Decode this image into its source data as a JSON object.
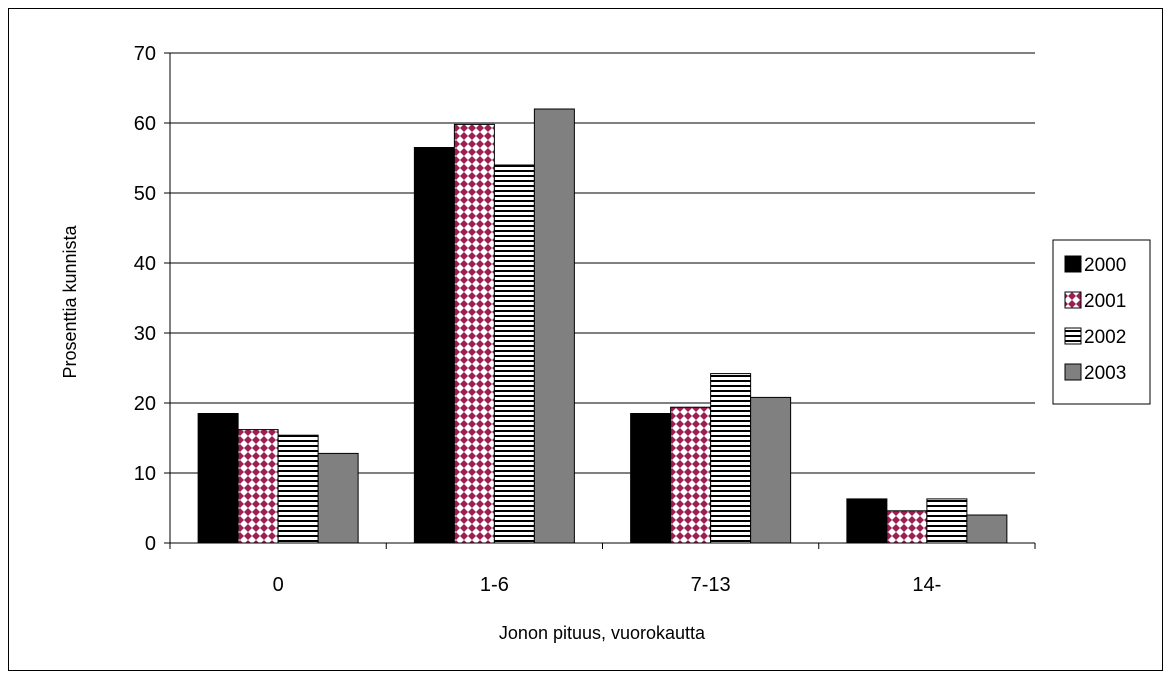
{
  "chart_data": {
    "type": "bar",
    "title": "",
    "xlabel": "Jonon pituus, vuorokautta",
    "ylabel": "Prosenttia kunnista",
    "categories": [
      "0",
      "1-6",
      "7-13",
      "14-"
    ],
    "series": [
      {
        "name": "2000",
        "values": [
          18.5,
          56.5,
          18.5,
          6.3
        ],
        "color": "#000000",
        "pattern": "solid"
      },
      {
        "name": "2001",
        "values": [
          16.2,
          59.8,
          19.4,
          4.6
        ],
        "color": "#9c1f54",
        "pattern": "diamond-check"
      },
      {
        "name": "2002",
        "values": [
          15.4,
          54.0,
          24.2,
          6.3
        ],
        "color": "#ffffff",
        "pattern": "horizontal-lines"
      },
      {
        "name": "2003",
        "values": [
          12.8,
          62.0,
          20.8,
          4.0
        ],
        "color": "#808080",
        "pattern": "solid"
      }
    ],
    "ylim": [
      0,
      70
    ],
    "yticks": [
      0,
      10,
      20,
      30,
      40,
      50,
      60,
      70
    ],
    "grid": "horizontal",
    "legend_position": "right"
  }
}
